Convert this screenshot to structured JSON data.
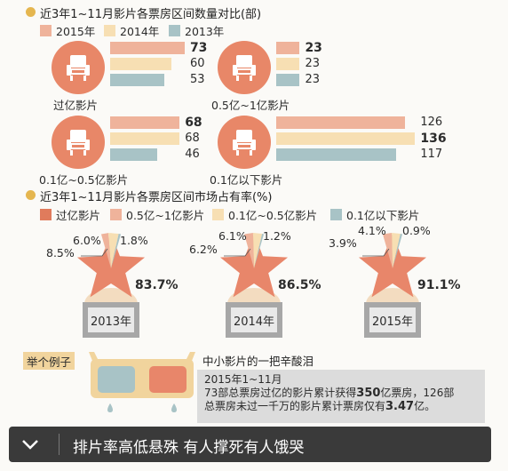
{
  "colors": {
    "y2015": "#efb39b",
    "y2014": "#f7dfb3",
    "y2013": "#a8c3c6",
    "dark": "#e07b5c",
    "star": "#e8866a",
    "bullet": "#e5b64f"
  },
  "section1": {
    "title": "近3年1~11月影片各票房区间数量对比(部)",
    "legend": [
      "2015年",
      "2014年",
      "2013年"
    ]
  },
  "section2": {
    "title": "近3年1~11月影片各票房区间市场占有率(%)",
    "legend": [
      "过亿影片",
      "0.5亿~1亿影片",
      "0.1亿~0.5亿影片",
      "0.1亿以下影片"
    ]
  },
  "chart_data": [
    {
      "type": "bar",
      "title": "近3年1~11月影片各票房区间数量对比(部)",
      "categories": [
        "过亿影片",
        "0.5亿~1亿影片",
        "0.1亿~0.5亿影片",
        "0.1亿以下影片"
      ],
      "series": [
        {
          "name": "2015年",
          "values": [
            73,
            23,
            68,
            126
          ]
        },
        {
          "name": "2014年",
          "values": [
            60,
            23,
            68,
            136
          ]
        },
        {
          "name": "2013年",
          "values": [
            53,
            23,
            46,
            117
          ]
        }
      ],
      "highlighted": [
        0,
        0,
        0,
        1
      ],
      "value_labels": [
        [
          "73",
          "60",
          "53"
        ],
        [
          "23",
          "23",
          "23"
        ],
        [
          "68",
          "68",
          "46"
        ],
        [
          "126",
          "136",
          "117"
        ]
      ]
    },
    {
      "type": "pie",
      "title": "近3年1~11月影片各票房区间市场占有率(%)",
      "categories": [
        "过亿影片",
        "0.5亿~1亿影片",
        "0.1亿~0.5亿影片",
        "0.1亿以下影片"
      ],
      "charts": [
        {
          "year": "2013年",
          "values": [
            83.7,
            6.0,
            8.5,
            1.8
          ],
          "labels": [
            "83.7%",
            "6.0%",
            "8.5%",
            "1.8%"
          ]
        },
        {
          "year": "2014年",
          "values": [
            86.5,
            6.1,
            6.2,
            1.2
          ],
          "labels": [
            "86.5%",
            "6.1%",
            "6.2%",
            "1.2%"
          ]
        },
        {
          "year": "2015年",
          "values": [
            91.1,
            4.1,
            3.9,
            0.9
          ],
          "labels": [
            "91.1%",
            "4.1%",
            "3.9%",
            "0.9%"
          ]
        }
      ]
    }
  ],
  "example": {
    "tag": "举个例子",
    "heading": "中小影片的一把辛酸泪",
    "line1": "2015年1~11月",
    "line2_a": "73部总票房过亿的影片累计获得",
    "line2_b": "350",
    "line2_c": "亿票房，126部",
    "line3_a": "总票房未过一千万的影片累计票房仅有",
    "line3_b": "3.47",
    "line3_c": "亿。"
  },
  "footer": {
    "text": "排片率高低悬殊 有人撑死有人饿哭",
    "icon": "chevron-down-icon"
  }
}
